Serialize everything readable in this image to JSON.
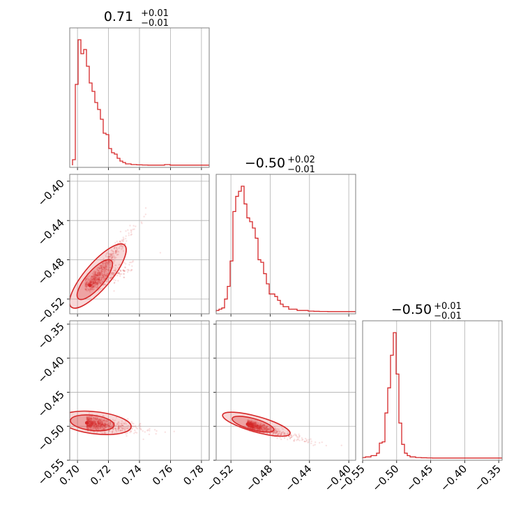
{
  "chart_data": {
    "type": "corner",
    "color": "#d62728",
    "parameters": [
      {
        "median": "0.71",
        "err_plus": "+0.01",
        "err_minus": "−0.01",
        "axis_range": [
          0.695,
          0.785
        ],
        "ticks": [
          0.7,
          0.72,
          0.74,
          0.76,
          0.78
        ],
        "tick_labels": [
          "0.70",
          "0.72",
          "0.74",
          "0.76",
          "0.78"
        ]
      },
      {
        "median": "−0.50",
        "err_plus": "+0.02",
        "err_minus": "−0.01",
        "axis_range": [
          -0.535,
          -0.393
        ],
        "ticks": [
          -0.52,
          -0.48,
          -0.44,
          -0.4
        ],
        "tick_labels": [
          "−0.52",
          "−0.48",
          "−0.44",
          "−0.40"
        ]
      },
      {
        "median": "−0.50",
        "err_plus": "+0.01",
        "err_minus": "−0.01",
        "axis_range": [
          -0.55,
          -0.345
        ],
        "ticks": [
          -0.55,
          -0.5,
          -0.45,
          -0.4,
          -0.35
        ],
        "tick_labels": [
          "−0.55",
          "−0.50",
          "−0.45",
          "−0.40",
          "−0.35"
        ]
      }
    ],
    "histograms": [
      {
        "param": 0,
        "bin_start": 0.6968,
        "bin_width": 0.0018,
        "counts": [
          4,
          58,
          90,
          80,
          83,
          71,
          59,
          53,
          45,
          40,
          33,
          23,
          22,
          12,
          9,
          8,
          5,
          3,
          2,
          1,
          1,
          0.5,
          0.5,
          0.3,
          0.3,
          0.2,
          0.2,
          0.1,
          0.1,
          0.1,
          0.1,
          0.1,
          0.1,
          0.5,
          0.5,
          0.1,
          0.1,
          0.1,
          0.1,
          0.1,
          0.1,
          0.1,
          0.1,
          0.1,
          0.1,
          0.1,
          0.1,
          0.1,
          0.1,
          0.1
        ]
      },
      {
        "param": 1,
        "bin_start": -0.535,
        "bin_width": 0.00284,
        "counts": [
          1,
          2,
          3,
          10,
          20,
          40,
          79,
          91,
          95,
          99,
          85,
          74,
          71,
          66,
          58,
          41,
          39,
          30,
          22,
          14,
          14,
          12,
          9,
          6,
          4,
          4,
          2,
          2,
          2,
          1,
          1,
          1,
          1,
          0.5,
          0.5,
          0.3,
          0.3,
          0.2,
          0.2,
          0.2,
          0.1,
          0.1,
          0.1,
          0.1,
          0.1,
          0.1,
          0.1,
          0.1,
          0.1,
          0.1
        ]
      },
      {
        "param": 2,
        "bin_start": -0.55,
        "bin_width": 0.0041,
        "counts": [
          0.5,
          1,
          1,
          2,
          2,
          4,
          12,
          13,
          36,
          56,
          82,
          100,
          67,
          28,
          11,
          4,
          2,
          1,
          1,
          0.5,
          0.5,
          0.3,
          0.3,
          0.2,
          0.2,
          0.1,
          0.1,
          0.1,
          0.1,
          0.1,
          0.1,
          0.1,
          0.1,
          0.1,
          0.1,
          0.1,
          0.1,
          0.1,
          0.1,
          0.1,
          0.1,
          0.1,
          0.1,
          0.1,
          0.1,
          0.1,
          0.1,
          0.1,
          0.1,
          0.1
        ]
      }
    ],
    "pairs": [
      {
        "x": 0,
        "y": 1,
        "center": [
          0.708,
          -0.506
        ],
        "spread": [
          0.006,
          0.012
        ],
        "correlation": 0.92,
        "contour_levels": [
          1.6,
          2.6
        ]
      },
      {
        "x": 0,
        "y": 2,
        "center": [
          0.706,
          -0.495
        ],
        "spread": [
          0.008,
          0.006
        ],
        "correlation": -0.35,
        "contour_levels": [
          1.6,
          2.6
        ]
      },
      {
        "x": 1,
        "y": 2,
        "center": [
          -0.503,
          -0.497
        ],
        "spread": [
          0.012,
          0.006
        ],
        "correlation": -0.8,
        "contour_levels": [
          1.6,
          2.6
        ]
      }
    ],
    "grid": true
  }
}
